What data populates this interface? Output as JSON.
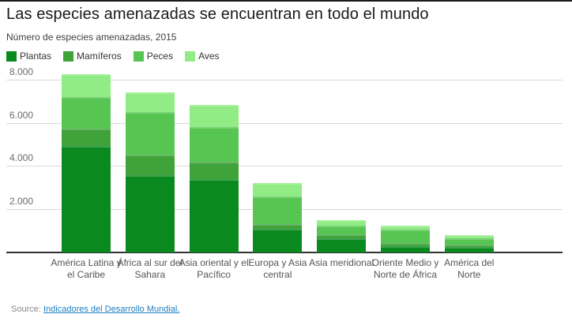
{
  "chart_data": {
    "type": "bar",
    "stacked": true,
    "title": "Las especies amenazadas se encuentran en todo el mundo",
    "subtitle": "Número de especies amenazadas, 2015",
    "categories": [
      "América Latina y el Caribe",
      "África al sur del Sahara",
      "Asia oriental y el Pacífico",
      "Europa y Asia central",
      "Asia meridional",
      "Oriente Medio y Norte de África",
      "América del Norte"
    ],
    "series": [
      {
        "name": "Plantas",
        "color": "#0a8a1e",
        "values": [
          4950,
          3590,
          3420,
          1100,
          670,
          300,
          250
        ]
      },
      {
        "name": "Mamíferos",
        "color": "#3fa33a",
        "values": [
          820,
          960,
          800,
          210,
          180,
          150,
          100
        ]
      },
      {
        "name": "Peces",
        "color": "#57c552",
        "values": [
          1450,
          1970,
          1630,
          1280,
          400,
          610,
          310
        ]
      },
      {
        "name": "Aves",
        "color": "#92ec86",
        "values": [
          1060,
          920,
          1000,
          650,
          270,
          200,
          150
        ]
      }
    ],
    "totals": [
      8280,
      7440,
      6850,
      3240,
      1520,
      1260,
      810
    ],
    "ylim": [
      0,
      8000
    ],
    "yticks": [
      {
        "value": 2000,
        "label": "2.000"
      },
      {
        "value": 4000,
        "label": "4.000"
      },
      {
        "value": 6000,
        "label": "6.000"
      },
      {
        "value": 8000,
        "label": "8.000"
      }
    ],
    "grid": "horizontal",
    "legend_position": "top-left",
    "colors": {
      "gridline": "#d9d9d9",
      "baseline": "#333333",
      "link": "#1d7fc2"
    }
  },
  "footer": {
    "source_prefix": "Source:",
    "source_link_text": "Indicadores del Desarrollo Mundial."
  }
}
